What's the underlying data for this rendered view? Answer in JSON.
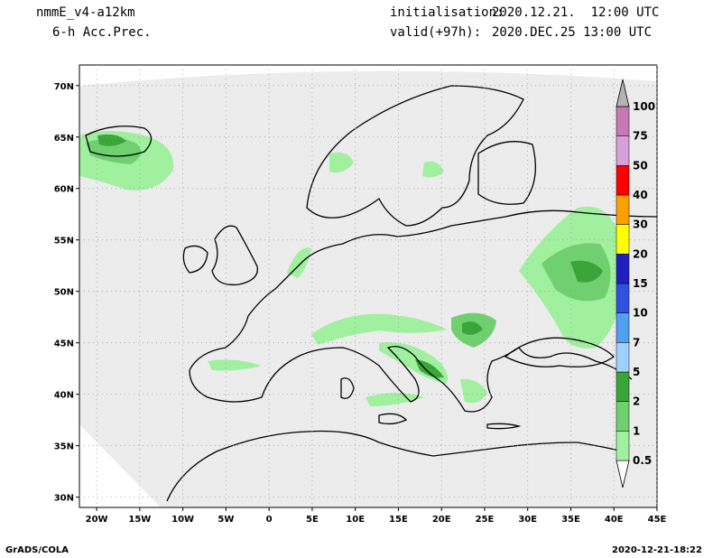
{
  "header": {
    "model": "nmmE_v4-a12km",
    "field": "6-h Acc.Prec.",
    "init_label": "initialisation:",
    "init_value": "2020.12.21.  12:00 UTC",
    "valid_label": "valid(+97h):",
    "valid_value": "2020.DEC.25 13:00 UTC"
  },
  "footer": {
    "left": "GrADS/COLA",
    "right": "2020-12-21-18:22"
  },
  "axes": {
    "lon_min": -22,
    "lon_max": 45,
    "lat_min": 29,
    "lat_max": 72,
    "lon_ticks": [
      {
        "v": -20,
        "t": "20W"
      },
      {
        "v": -15,
        "t": "15W"
      },
      {
        "v": -10,
        "t": "10W"
      },
      {
        "v": -5,
        "t": "5W"
      },
      {
        "v": 0,
        "t": "0"
      },
      {
        "v": 5,
        "t": "5E"
      },
      {
        "v": 10,
        "t": "10E"
      },
      {
        "v": 15,
        "t": "15E"
      },
      {
        "v": 20,
        "t": "20E"
      },
      {
        "v": 25,
        "t": "25E"
      },
      {
        "v": 30,
        "t": "30E"
      },
      {
        "v": 35,
        "t": "35E"
      },
      {
        "v": 40,
        "t": "40E"
      },
      {
        "v": 45,
        "t": "45E"
      }
    ],
    "lat_ticks": [
      {
        "v": 30,
        "t": "30N"
      },
      {
        "v": 35,
        "t": "35N"
      },
      {
        "v": 40,
        "t": "40N"
      },
      {
        "v": 45,
        "t": "45N"
      },
      {
        "v": 50,
        "t": "50N"
      },
      {
        "v": 55,
        "t": "55N"
      },
      {
        "v": 60,
        "t": "60N"
      },
      {
        "v": 65,
        "t": "65N"
      },
      {
        "v": 70,
        "t": "70N"
      }
    ],
    "grid": "dotted"
  },
  "colorbar": {
    "levels": [
      "0.5",
      "1",
      "2",
      "5",
      "7",
      "10",
      "15",
      "20",
      "30",
      "40",
      "50",
      "75",
      "100"
    ],
    "colors": [
      "#a0f0a0",
      "#70d070",
      "#3aa63a",
      "#a0d0ff",
      "#50a0f0",
      "#3050e0",
      "#2020c0",
      "#ffff00",
      "#ffa000",
      "#ff0000",
      "#d8a0d8",
      "#c878b4",
      "#960096",
      "#b4b4b4"
    ]
  },
  "precip_areas": [
    {
      "level": 1,
      "note": "Iceland"
    },
    {
      "level": 2,
      "note": "Black Sea / Romania"
    },
    {
      "level": 2,
      "note": "Adriatic / Balkans"
    },
    {
      "level": 2,
      "note": "Western Russia"
    }
  ]
}
